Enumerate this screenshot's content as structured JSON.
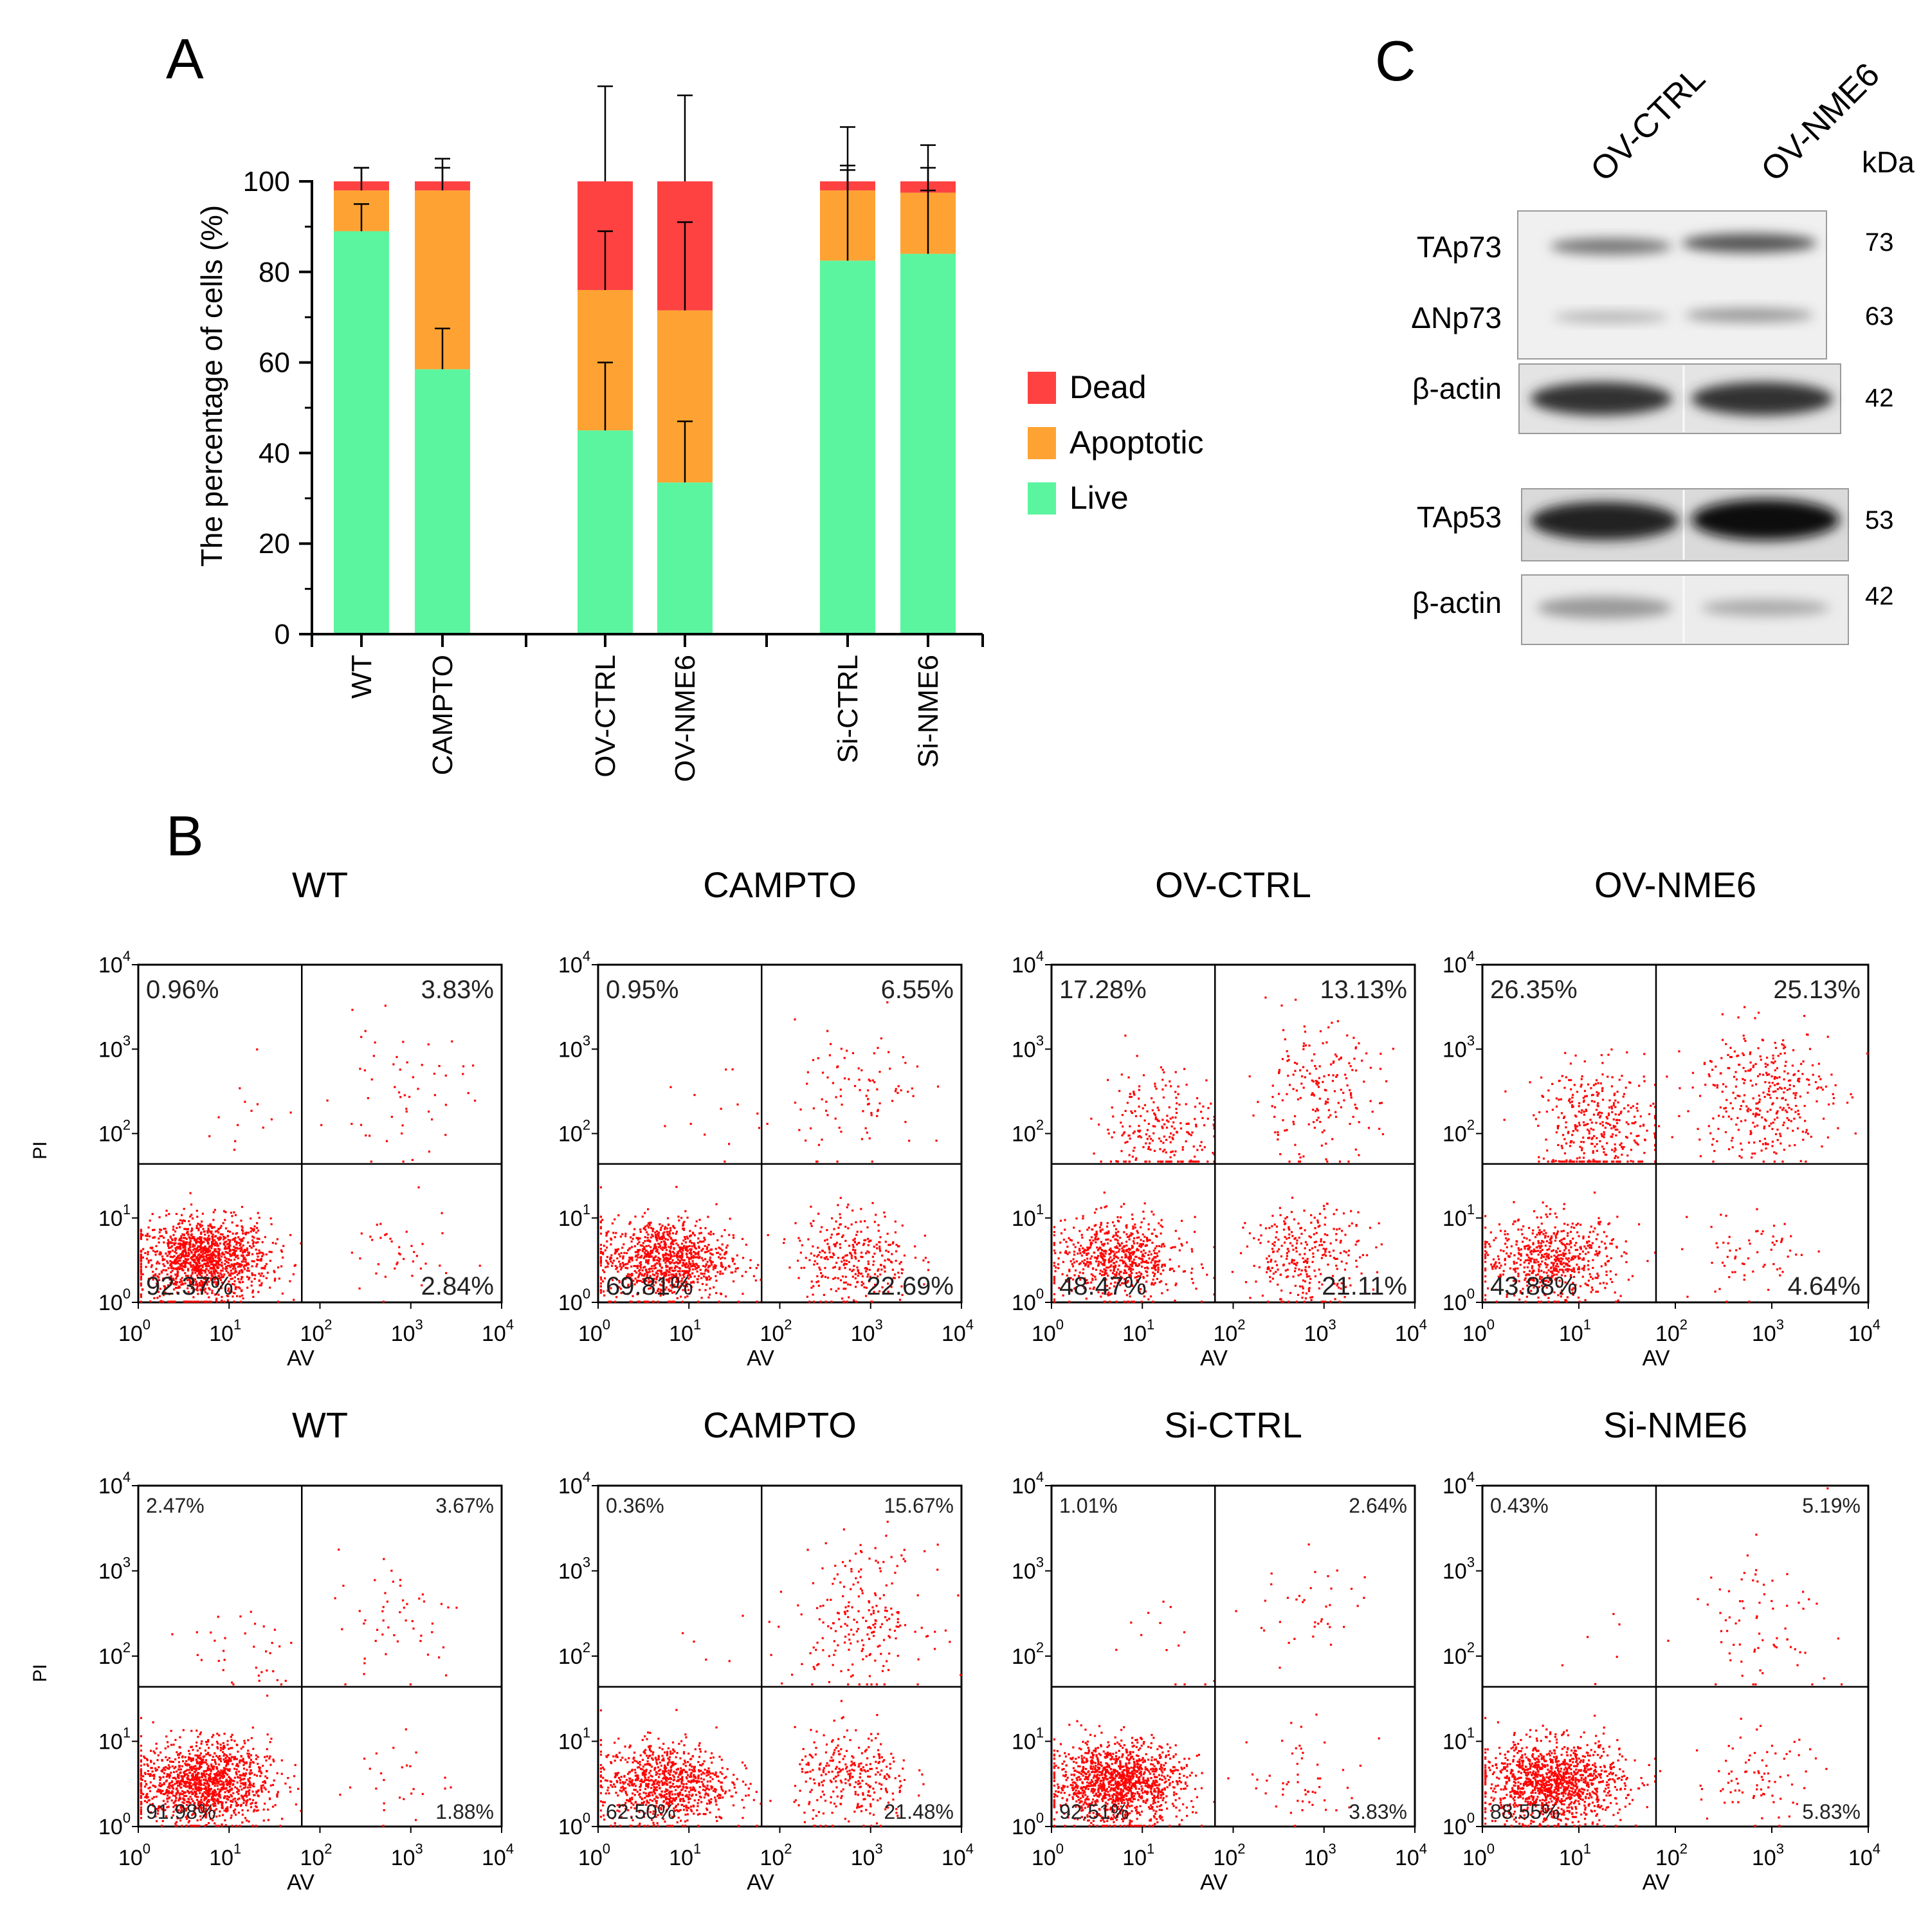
{
  "panels": {
    "A": {
      "letter": "A",
      "chart_data": {
        "type": "bar",
        "stacked": true,
        "ylabel": "The percentage of cells (%)",
        "xlabel": "",
        "ylim": [
          0,
          100
        ],
        "yticks": [
          "0",
          "20",
          "40",
          "60",
          "80",
          "100"
        ],
        "categories": [
          "WT",
          "CAMPTO",
          "OV-CTRL",
          "OV-NME6",
          "Si-CTRL",
          "Si-NME6"
        ],
        "groups": [
          [
            0,
            1
          ],
          [
            2,
            3
          ],
          [
            4,
            5
          ]
        ],
        "legend_position": "right",
        "series": [
          {
            "name": "Live",
            "color": "#5cf59f",
            "values": [
              89,
              58.5,
              45,
              33.5,
              82.5,
              84
            ],
            "error": [
              6,
              9,
              15,
              13.5,
              20,
              14
            ]
          },
          {
            "name": "Apoptotic",
            "color": "#fea333",
            "values": [
              9,
              39.5,
              31,
              38,
              15.5,
              13.5
            ],
            "error": [
              5,
              5,
              13,
              19.5,
              5.5,
              5.5
            ]
          },
          {
            "name": "Dead",
            "color": "#fe4242",
            "values": [
              2,
              2,
              24,
              28.5,
              2,
              2.5
            ],
            "error": [
              3,
              5,
              21,
              19,
              12,
              8
            ]
          }
        ],
        "legend_order": [
          "Dead",
          "Apoptotic",
          "Live"
        ]
      }
    },
    "B": {
      "letter": "B",
      "x_axis_label": "AV",
      "y_axis_label": "PI",
      "tick_base": "10",
      "tick_exponents": [
        "0",
        "1",
        "2",
        "3",
        "4"
      ],
      "chart_data": [
        {
          "type": "scatter",
          "title": "WT",
          "quadrants": {
            "UL": "0.96%",
            "UR": "3.83%",
            "LL": "92.37%",
            "LR": "2.84%"
          }
        },
        {
          "type": "scatter",
          "title": "CAMPTO",
          "quadrants": {
            "UL": "0.95%",
            "UR": "6.55%",
            "LL": "69.81%",
            "LR": "22.69%"
          }
        },
        {
          "type": "scatter",
          "title": "OV-CTRL",
          "quadrants": {
            "UL": "17.28%",
            "UR": "13.13%",
            "LL": "48.47%",
            "LR": "21.11%"
          }
        },
        {
          "type": "scatter",
          "title": "OV-NME6",
          "quadrants": {
            "UL": "26.35%",
            "UR": "25.13%",
            "LL": "43.88%",
            "LR": "4.64%"
          }
        },
        {
          "type": "scatter",
          "title": "WT",
          "quadrants": {
            "UL": "2.47%",
            "UR": "3.67%",
            "LL": "91.98%",
            "LR": "1.88%"
          }
        },
        {
          "type": "scatter",
          "title": "CAMPTO",
          "quadrants": {
            "UL": "0.36%",
            "UR": "15.67%",
            "LL": "62.50%",
            "LR": "21.48%"
          }
        },
        {
          "type": "scatter",
          "title": "Si-CTRL",
          "quadrants": {
            "UL": "1.01%",
            "UR": "2.64%",
            "LL": "92.51%",
            "LR": "3.83%"
          }
        },
        {
          "type": "scatter",
          "title": "Si-NME6",
          "quadrants": {
            "UL": "0.43%",
            "UR": "5.19%",
            "LL": "88.55%",
            "LR": "5.83%"
          }
        }
      ]
    },
    "C": {
      "letter": "C",
      "lanes": [
        "OV-CTRL",
        "OV-NME6"
      ],
      "unit": "kDa",
      "bands": [
        {
          "label": "TAp73",
          "kda": "73"
        },
        {
          "label": "ΔNp73",
          "kda": "63"
        },
        {
          "label": "β-actin",
          "kda": "42"
        },
        {
          "label": "TAp53",
          "kda": "53"
        },
        {
          "label": "β-actin",
          "kda": "42"
        }
      ]
    }
  }
}
